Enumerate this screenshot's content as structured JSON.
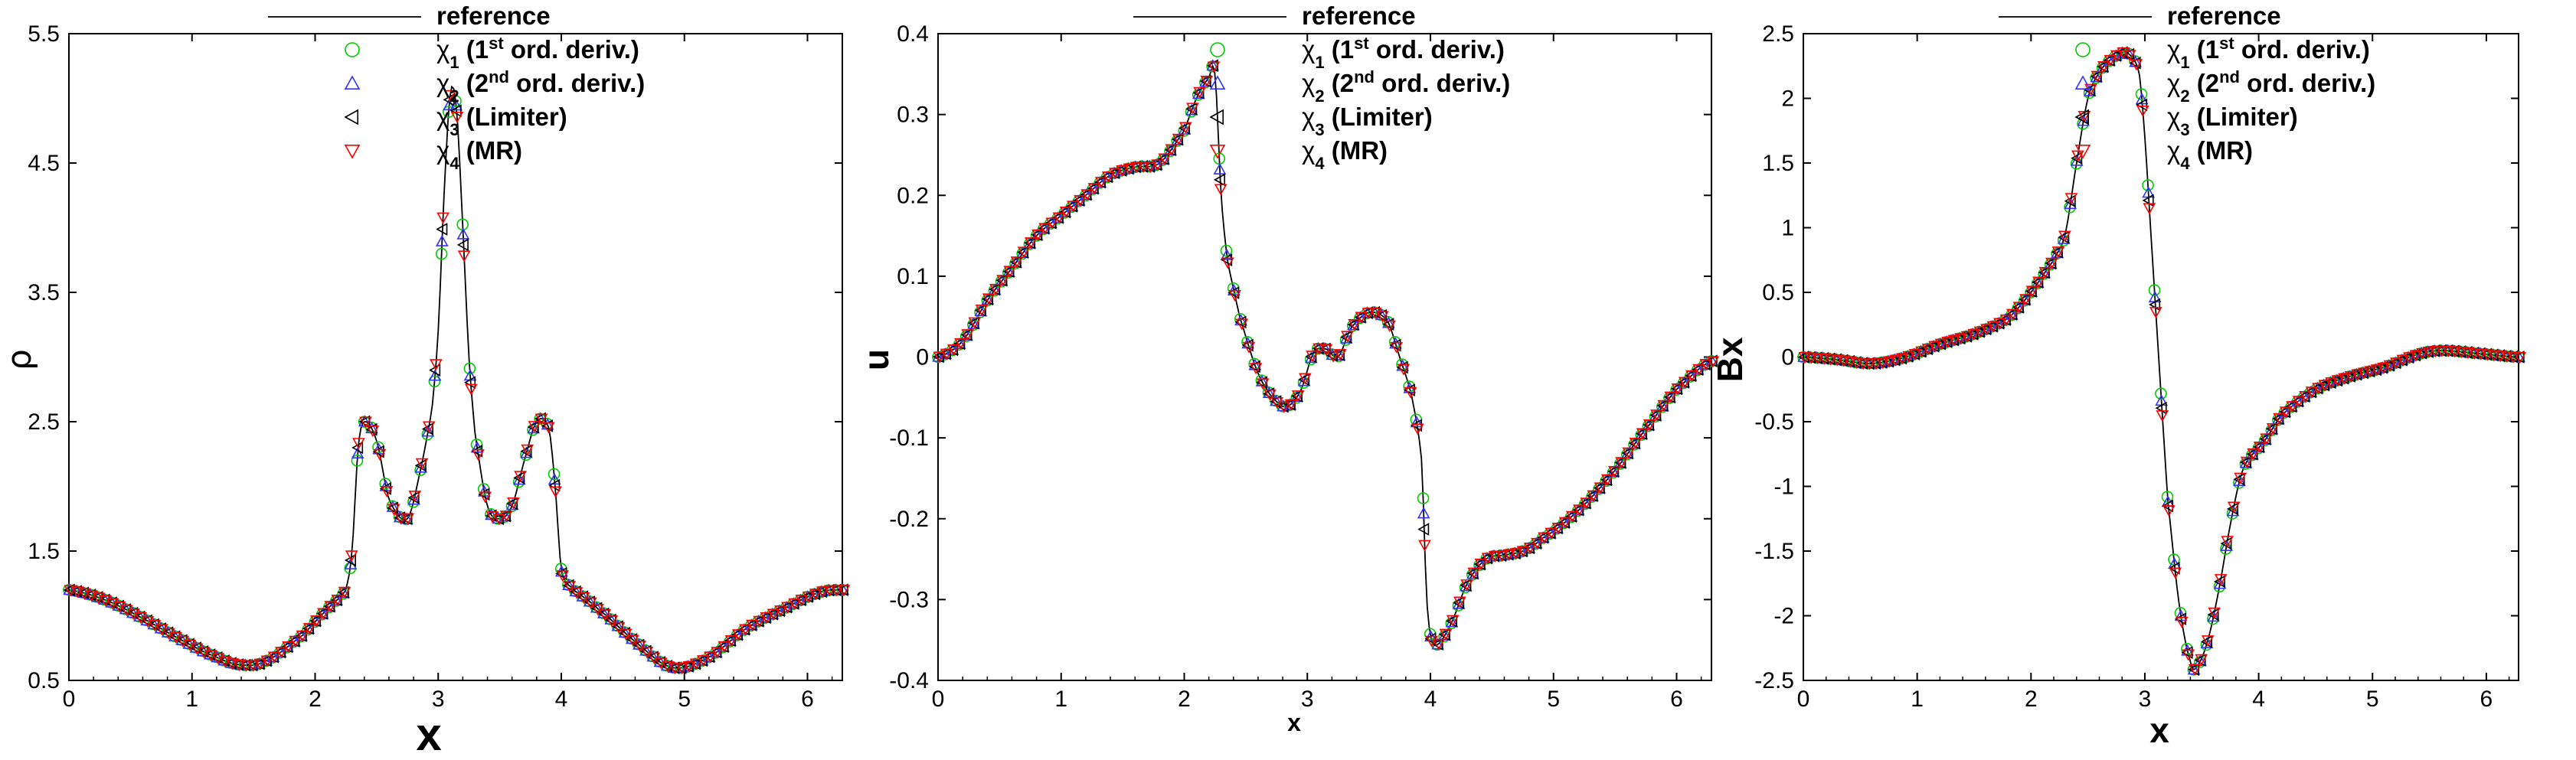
{
  "figure": {
    "legend_labels": {
      "reference": "reference",
      "chi1": "χ",
      "chi1_sub": "1",
      "chi1_text_a": " (1",
      "chi1_sup": "st",
      "chi1_text_b": " ord. deriv.)",
      "chi2": "χ",
      "chi2_sub": "2",
      "chi2_text_a": " (2",
      "chi2_sup": "nd",
      "chi2_text_b": " ord. deriv.)",
      "chi3": "χ",
      "chi3_sub": "3",
      "chi3_text": " (Limiter)",
      "chi4": "χ",
      "chi4_sub": "4",
      "chi4_text": " (MR)"
    },
    "colors": {
      "reference": "#000000",
      "chi1": "#00cc00",
      "chi2": "#3333ff",
      "chi3": "#000000",
      "chi4": "#ff0000"
    },
    "marker_shapes": {
      "chi1": "circle",
      "chi2": "triangle-up",
      "chi3": "triangle-left",
      "chi4": "triangle-down"
    }
  },
  "chart_data": [
    {
      "type": "line",
      "xlabel": "x",
      "ylabel": "ρ",
      "xlim": [
        0,
        6.2832
      ],
      "ylim": [
        0.5,
        5.5
      ],
      "xticks": [
        0,
        1,
        2,
        3,
        4,
        5,
        6
      ],
      "yticks": [
        0.5,
        1.5,
        2.5,
        3.5,
        4.5,
        5.5
      ],
      "ytick_labels": [
        "0.5",
        "1.5",
        "2.5",
        "3.5",
        "4.5",
        "5.5"
      ],
      "series": [
        {
          "name": "reference",
          "style": "line"
        },
        {
          "name": "χ1 (1st ord. deriv.)",
          "style": "markers"
        },
        {
          "name": "χ2 (2nd ord. deriv.)",
          "style": "markers"
        },
        {
          "name": "χ3 (Limiter)",
          "style": "markers"
        },
        {
          "name": "χ4 (MR)",
          "style": "markers"
        }
      ],
      "x": [
        0,
        0.3,
        0.6,
        0.9,
        1.2,
        1.4,
        1.6,
        1.9,
        2.1,
        2.25,
        2.3,
        2.35,
        2.4,
        2.5,
        2.6,
        2.75,
        2.85,
        2.95,
        3.0,
        3.05,
        3.1,
        3.15,
        3.2,
        3.25,
        3.3,
        3.4,
        3.5,
        3.6,
        3.7,
        3.8,
        3.9,
        3.95,
        4.0,
        4.1,
        4.3,
        4.6,
        4.9,
        5.2,
        5.5,
        5.8,
        6.1,
        6.2832
      ],
      "y": [
        1.2,
        1.12,
        0.98,
        0.82,
        0.68,
        0.62,
        0.65,
        0.85,
        1.05,
        1.2,
        1.5,
        2.3,
        2.5,
        2.35,
        1.9,
        1.75,
        2.1,
        2.6,
        3.2,
        4.3,
        5.05,
        4.9,
        4.0,
        3.0,
        2.4,
        1.85,
        1.75,
        1.85,
        2.2,
        2.5,
        2.45,
        2.0,
        1.35,
        1.2,
        1.05,
        0.8,
        0.6,
        0.68,
        0.9,
        1.05,
        1.18,
        1.2
      ]
    },
    {
      "type": "line",
      "xlabel": "x",
      "ylabel": "u",
      "xlim": [
        0,
        6.2832
      ],
      "ylim": [
        -0.4,
        0.4
      ],
      "xticks": [
        0,
        1,
        2,
        3,
        4,
        5,
        6
      ],
      "yticks": [
        -0.4,
        -0.3,
        -0.2,
        -0.1,
        0,
        0.1,
        0.2,
        0.3,
        0.4
      ],
      "ytick_labels": [
        "-0.4",
        "-0.3",
        "-0.2",
        "-0.1",
        "0",
        "0.1",
        "0.2",
        "0.3",
        "0.4"
      ],
      "series": [
        {
          "name": "reference",
          "style": "line"
        },
        {
          "name": "χ1 (1st ord. deriv.)",
          "style": "markers"
        },
        {
          "name": "χ2 (2nd ord. deriv.)",
          "style": "markers"
        },
        {
          "name": "χ3 (Limiter)",
          "style": "markers"
        },
        {
          "name": "χ4 (MR)",
          "style": "markers"
        }
      ],
      "x": [
        0,
        0.2,
        0.4,
        0.6,
        0.8,
        1.0,
        1.2,
        1.4,
        1.6,
        1.8,
        2.0,
        2.1,
        2.2,
        2.25,
        2.3,
        2.35,
        2.45,
        2.6,
        2.75,
        2.85,
        2.95,
        3.05,
        3.15,
        3.25,
        3.35,
        3.5,
        3.65,
        3.75,
        3.85,
        3.93,
        3.97,
        4.02,
        4.15,
        4.3,
        4.45,
        4.6,
        4.75,
        4.9,
        5.2,
        5.5,
        5.8,
        6.0,
        6.2832
      ],
      "y": [
        0.0,
        0.02,
        0.07,
        0.11,
        0.15,
        0.175,
        0.2,
        0.225,
        0.235,
        0.24,
        0.28,
        0.32,
        0.345,
        0.35,
        0.2,
        0.12,
        0.05,
        -0.02,
        -0.055,
        -0.06,
        -0.04,
        0.005,
        0.01,
        0.0,
        0.035,
        0.055,
        0.045,
        0.0,
        -0.05,
        -0.13,
        -0.3,
        -0.355,
        -0.335,
        -0.28,
        -0.25,
        -0.245,
        -0.24,
        -0.225,
        -0.19,
        -0.14,
        -0.08,
        -0.04,
        -0.005
      ]
    },
    {
      "type": "line",
      "xlabel": "x",
      "ylabel": "Bx",
      "xlim": [
        0,
        6.2832
      ],
      "ylim": [
        -2.5,
        2.5
      ],
      "xticks": [
        0,
        1,
        2,
        3,
        4,
        5,
        6
      ],
      "yticks": [
        -2.5,
        -2,
        -1.5,
        -1,
        -0.5,
        0,
        0.5,
        1,
        1.5,
        2,
        2.5
      ],
      "ytick_labels": [
        "-2.5",
        "-2",
        "-1.5",
        "-1",
        "-0.5",
        "0",
        "0.5",
        "1",
        "1.5",
        "2",
        "2.5"
      ],
      "series": [
        {
          "name": "reference",
          "style": "line"
        },
        {
          "name": "χ1 (1st ord. deriv.)",
          "style": "markers"
        },
        {
          "name": "χ2 (2nd ord. deriv.)",
          "style": "markers"
        },
        {
          "name": "χ3 (Limiter)",
          "style": "markers"
        },
        {
          "name": "χ4 (MR)",
          "style": "markers"
        }
      ],
      "x": [
        0,
        0.3,
        0.6,
        0.9,
        1.2,
        1.5,
        1.8,
        2.0,
        2.2,
        2.3,
        2.4,
        2.5,
        2.6,
        2.7,
        2.8,
        2.85,
        2.95,
        3.0,
        3.05,
        3.1,
        3.15,
        3.2,
        3.3,
        3.4,
        3.45,
        3.55,
        3.65,
        3.75,
        3.85,
        3.95,
        4.0,
        4.2,
        4.5,
        4.8,
        5.1,
        5.4,
        5.6,
        5.9,
        6.2832
      ],
      "y": [
        0.0,
        -0.02,
        -0.05,
        0.0,
        0.1,
        0.18,
        0.3,
        0.5,
        0.75,
        0.95,
        1.5,
        2.0,
        2.2,
        2.3,
        2.35,
        2.35,
        2.2,
        1.7,
        1.0,
        0.3,
        -0.4,
        -1.1,
        -1.9,
        -2.35,
        -2.4,
        -2.2,
        -1.8,
        -1.3,
        -0.9,
        -0.75,
        -0.7,
        -0.45,
        -0.25,
        -0.15,
        -0.08,
        0.02,
        0.05,
        0.03,
        0.0
      ]
    }
  ]
}
